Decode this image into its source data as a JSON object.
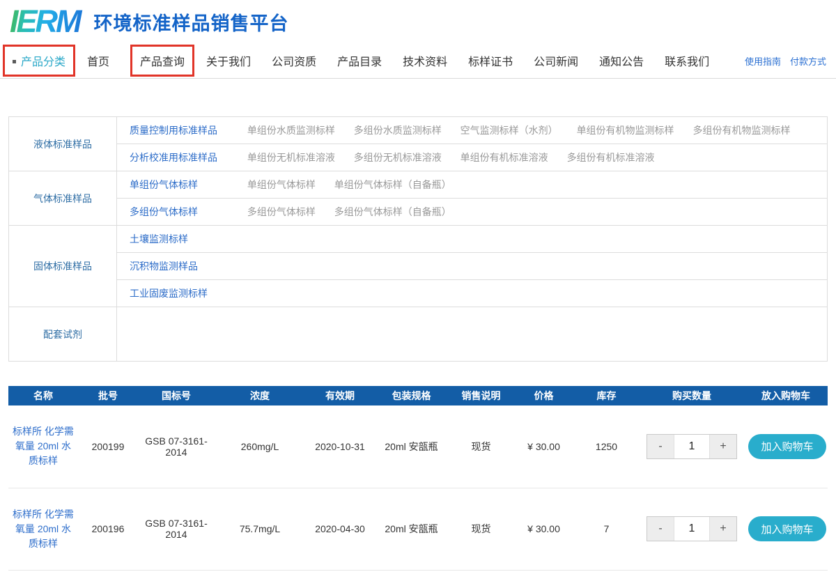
{
  "header": {
    "logo_text": "IERM",
    "site_title": "环境标准样品销售平台"
  },
  "nav": {
    "items": [
      {
        "label": "产品分类"
      },
      {
        "label": "首页"
      },
      {
        "label": "产品查询"
      },
      {
        "label": "关于我们"
      },
      {
        "label": "公司资质"
      },
      {
        "label": "产品目录"
      },
      {
        "label": "技术资料"
      },
      {
        "label": "标样证书"
      },
      {
        "label": "公司新闻"
      },
      {
        "label": "通知公告"
      },
      {
        "label": "联系我们"
      }
    ],
    "right_links": [
      {
        "label": "使用指南"
      },
      {
        "label": "付款方式"
      }
    ]
  },
  "categories": [
    {
      "label": "液体标准样品",
      "rows": [
        {
          "primary": "质量控制用标准样品",
          "links": [
            "单组份水质监测标样",
            "多组份水质监测标样",
            "空气监测标样（水剂）",
            "单组份有机物监测标样",
            "多组份有机物监测标样"
          ]
        },
        {
          "primary": "分析校准用标准样品",
          "links": [
            "单组份无机标准溶液",
            "多组份无机标准溶液",
            "单组份有机标准溶液",
            "多组份有机标准溶液"
          ]
        }
      ]
    },
    {
      "label": "气体标准样品",
      "rows": [
        {
          "primary": "单组份气体标样",
          "links": [
            "单组份气体标样",
            "单组份气体标样（自备瓶）"
          ]
        },
        {
          "primary": "多组份气体标样",
          "links": [
            "多组份气体标样",
            "多组份气体标样（自备瓶）"
          ]
        }
      ]
    },
    {
      "label": "固体标准样品",
      "rows": [
        {
          "primary": "土壤监测标样",
          "links": []
        },
        {
          "primary": "沉积物监测样品",
          "links": []
        },
        {
          "primary": "工业固废监测标样",
          "links": []
        }
      ]
    },
    {
      "label": "配套试剂",
      "rows": [
        {
          "primary": "",
          "links": []
        }
      ]
    }
  ],
  "products": {
    "columns": [
      "名称",
      "批号",
      "国标号",
      "浓度",
      "有效期",
      "包装规格",
      "销售说明",
      "价格",
      "库存",
      "购买数量",
      "放入购物车"
    ],
    "stepper": {
      "minus_label": "-",
      "plus_label": "+"
    },
    "add_to_cart_label": "加入购物车",
    "rows": [
      {
        "name": "标样所 化学需氧量 20ml 水质标样",
        "batch": "200199",
        "gsb_no": "GSB 07-3161-2014",
        "concentration": "260mg/L",
        "expiry": "2020-10-31",
        "package": "20ml 安瓿瓶",
        "sale_note": "现货",
        "price": "¥ 30.00",
        "stock": "1250",
        "qty": "1"
      },
      {
        "name": "标样所 化学需氧量 20ml 水质标样",
        "batch": "200196",
        "gsb_no": "GSB 07-3161-2014",
        "concentration": "75.7mg/L",
        "expiry": "2020-04-30",
        "package": "20ml 安瓿瓶",
        "sale_note": "现货",
        "price": "¥ 30.00",
        "stock": "7",
        "qty": "1"
      }
    ]
  },
  "colors": {
    "brand_blue": "#1464c8",
    "teal_active": "#2aa8c8",
    "highlight_red": "#e13428",
    "table_header_bg": "#135da6",
    "link_blue": "#2e6ecb",
    "muted_link": "#999999",
    "button_cyan": "#29adcc"
  }
}
